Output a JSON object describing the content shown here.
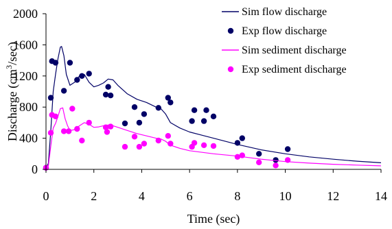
{
  "chart_data": {
    "type": "line",
    "xlabel": "Time (sec)",
    "ylabel": {
      "text": "Discharge (cm",
      "sup": "3",
      "tail": "/sec)"
    },
    "xlim": [
      0,
      14
    ],
    "ylim": [
      0,
      2000
    ],
    "xticks": [
      0,
      2,
      4,
      6,
      8,
      10,
      12,
      14
    ],
    "yticks": [
      0,
      400,
      800,
      1200,
      1600,
      2000
    ],
    "grid": false,
    "legend_position": "top-right",
    "series": [
      {
        "name": "Sim flow discharge",
        "kind": "line",
        "color": "#000066",
        "x": [
          0,
          0.1,
          0.2,
          0.3,
          0.4,
          0.5,
          0.6,
          0.65,
          0.75,
          0.85,
          1.0,
          1.2,
          1.4,
          1.6,
          1.8,
          2.0,
          2.2,
          2.4,
          2.6,
          2.8,
          3.0,
          3.4,
          3.8,
          4.2,
          4.6,
          4.8,
          5.0,
          5.2,
          5.6,
          6.0,
          6.5,
          7.0,
          8.0,
          9.0,
          10.0,
          11.0,
          12.0,
          13.0,
          14.0
        ],
        "y": [
          0,
          80,
          500,
          1000,
          1220,
          1420,
          1570,
          1580,
          1460,
          1220,
          1080,
          1120,
          1200,
          1220,
          1120,
          1060,
          1080,
          1110,
          1160,
          1150,
          1080,
          970,
          900,
          860,
          800,
          780,
          710,
          600,
          530,
          480,
          440,
          400,
          320,
          250,
          200,
          160,
          130,
          105,
          85
        ]
      },
      {
        "name": "Exp flow discharge",
        "kind": "scatter",
        "color": "#000066",
        "x": [
          0,
          0.2,
          0.25,
          0.4,
          0.75,
          1.0,
          1.3,
          1.5,
          1.8,
          2.5,
          2.6,
          2.7,
          3.3,
          3.7,
          3.9,
          4.1,
          4.7,
          5.1,
          5.2,
          6.1,
          6.2,
          6.6,
          6.7,
          7.0,
          8.0,
          8.2,
          8.9,
          9.6,
          10.1
        ],
        "y": [
          20,
          920,
          1390,
          1370,
          1010,
          1370,
          1150,
          1200,
          1230,
          960,
          1060,
          950,
          590,
          800,
          600,
          710,
          790,
          920,
          860,
          620,
          760,
          620,
          760,
          680,
          340,
          400,
          200,
          120,
          260
        ]
      },
      {
        "name": "Sim sediment discharge",
        "kind": "line",
        "color": "#ff00ff",
        "x": [
          0,
          0.1,
          0.2,
          0.3,
          0.4,
          0.5,
          0.6,
          0.7,
          0.8,
          0.9,
          1.0,
          1.2,
          1.4,
          1.6,
          1.8,
          2.0,
          2.2,
          2.4,
          2.6,
          2.8,
          3.0,
          3.4,
          3.8,
          4.2,
          4.6,
          4.8,
          5.0,
          5.2,
          5.6,
          6.0,
          7.0,
          8.0,
          9.0,
          10.0,
          11.0,
          12.0,
          13.0,
          14.0
        ],
        "y": [
          0,
          50,
          300,
          530,
          590,
          680,
          780,
          790,
          650,
          560,
          500,
          510,
          560,
          600,
          580,
          540,
          545,
          560,
          570,
          560,
          540,
          500,
          460,
          430,
          400,
          390,
          360,
          310,
          270,
          240,
          200,
          170,
          130,
          100,
          80,
          65,
          55,
          45
        ]
      },
      {
        "name": "Exp sediment discharge",
        "kind": "scatter",
        "color": "#ff00ff",
        "x": [
          0,
          0.2,
          0.25,
          0.4,
          0.75,
          0.95,
          1.1,
          1.3,
          1.5,
          1.8,
          2.5,
          2.55,
          2.7,
          3.3,
          3.7,
          3.9,
          4.1,
          4.7,
          5.1,
          5.2,
          6.1,
          6.2,
          6.6,
          7.0,
          8.0,
          8.2,
          8.9,
          9.6,
          10.1
        ],
        "y": [
          20,
          470,
          700,
          680,
          490,
          490,
          780,
          520,
          370,
          600,
          540,
          480,
          550,
          290,
          420,
          290,
          330,
          370,
          430,
          330,
          290,
          340,
          310,
          300,
          160,
          180,
          90,
          50,
          120
        ]
      }
    ]
  }
}
